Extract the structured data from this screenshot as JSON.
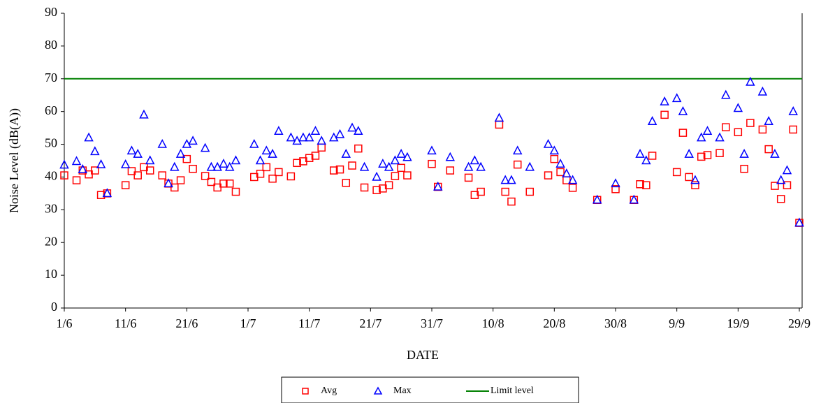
{
  "chart_data": {
    "type": "scatter",
    "x_label": "DATE",
    "y_label": "Noise Level (dB(A))",
    "xlim": [
      0,
      120
    ],
    "ylim": [
      0,
      90
    ],
    "xticks": [
      {
        "value": 0,
        "label": "1/6"
      },
      {
        "value": 10,
        "label": "11/6"
      },
      {
        "value": 20,
        "label": "21/6"
      },
      {
        "value": 30,
        "label": "1/7"
      },
      {
        "value": 40,
        "label": "11/7"
      },
      {
        "value": 50,
        "label": "21/7"
      },
      {
        "value": 60,
        "label": "31/7"
      },
      {
        "value": 70,
        "label": "10/8"
      },
      {
        "value": 80,
        "label": "20/8"
      },
      {
        "value": 90,
        "label": "30/8"
      },
      {
        "value": 100,
        "label": "9/9"
      },
      {
        "value": 110,
        "label": "19/9"
      },
      {
        "value": 120,
        "label": "29/9"
      }
    ],
    "yticks": [
      0,
      10,
      20,
      30,
      40,
      50,
      60,
      70,
      80,
      90
    ],
    "series": [
      {
        "name": "Avg",
        "color": "#ff0000",
        "marker": "square",
        "x": [
          0,
          2,
          3,
          4,
          5,
          6,
          7,
          10,
          11,
          12,
          13,
          14,
          16,
          17,
          18,
          19,
          20,
          21,
          23,
          24,
          25,
          26,
          27,
          28,
          31,
          32,
          33,
          34,
          35,
          37,
          38,
          39,
          40,
          41,
          42,
          44,
          45,
          46,
          47,
          48,
          49,
          51,
          52,
          53,
          54,
          55,
          56,
          60,
          61,
          63,
          66,
          67,
          68,
          71,
          72,
          73,
          74,
          76,
          79,
          80,
          81,
          82,
          83,
          87,
          90,
          93,
          94,
          95,
          96,
          98,
          100,
          101,
          102,
          103,
          104,
          105,
          107,
          108,
          110,
          111,
          112,
          114,
          115,
          116,
          117,
          118,
          119,
          120
        ],
        "values": [
          40.5,
          39,
          42,
          40.8,
          42,
          34.5,
          35,
          37.5,
          41.8,
          40.5,
          43,
          42,
          40.5,
          38,
          36.8,
          39,
          45.5,
          42.5,
          40.3,
          38.5,
          36.8,
          38,
          38,
          35.5,
          40,
          41,
          43,
          39.5,
          41.5,
          40.2,
          44.3,
          44.8,
          45.8,
          46.5,
          49,
          42,
          42.3,
          38.2,
          43.5,
          48.7,
          36.8,
          36,
          36.5,
          37.5,
          40.3,
          42.8,
          40.5,
          44,
          37,
          42,
          39.8,
          34.5,
          35.5,
          56,
          35.5,
          32.5,
          43.8,
          35.5,
          40.5,
          45.5,
          41.5,
          39,
          36.7,
          33,
          36.3,
          33,
          37.8,
          37.5,
          46.5,
          59,
          41.5,
          53.5,
          40,
          37.5,
          46.2,
          46.7,
          47.3,
          55.2,
          53.7,
          42.5,
          56.5,
          54.5,
          48.5,
          37.3,
          33.3,
          37.5,
          54.5,
          26
        ]
      },
      {
        "name": "Max",
        "color": "#0000ff",
        "marker": "triangle",
        "x": [
          0,
          2,
          3,
          4,
          5,
          6,
          7,
          10,
          11,
          12,
          13,
          14,
          16,
          17,
          18,
          19,
          20,
          21,
          23,
          24,
          25,
          26,
          27,
          28,
          31,
          32,
          33,
          34,
          35,
          37,
          38,
          39,
          40,
          41,
          42,
          44,
          45,
          46,
          47,
          48,
          49,
          51,
          52,
          53,
          54,
          55,
          56,
          60,
          61,
          63,
          66,
          67,
          68,
          71,
          72,
          73,
          74,
          76,
          79,
          80,
          81,
          82,
          83,
          87,
          90,
          93,
          94,
          95,
          96,
          98,
          100,
          101,
          102,
          103,
          104,
          105,
          107,
          108,
          110,
          111,
          112,
          114,
          115,
          116,
          117,
          118,
          119,
          120
        ],
        "values": [
          43.7,
          44.8,
          42.3,
          52,
          47.8,
          43.8,
          35,
          43.8,
          48,
          47,
          59,
          45,
          50,
          38,
          43,
          47,
          50,
          51,
          48.8,
          43,
          43,
          44,
          43,
          45,
          50,
          45,
          48,
          47,
          54,
          52,
          51,
          52,
          52,
          54,
          51,
          52,
          53,
          47,
          55,
          54,
          43,
          40,
          44,
          43,
          45,
          47,
          46,
          48,
          37,
          46,
          43,
          45,
          43,
          58,
          39,
          39,
          48,
          43,
          50,
          48,
          44,
          41,
          39,
          33,
          38,
          33,
          47,
          45,
          57,
          63,
          64,
          60,
          47,
          39,
          52,
          54,
          52,
          65,
          61,
          47,
          69,
          66,
          57,
          47,
          39,
          42,
          60,
          26
        ]
      }
    ],
    "limit": {
      "name": "Limit level",
      "value": 70,
      "color": "#008000"
    }
  }
}
